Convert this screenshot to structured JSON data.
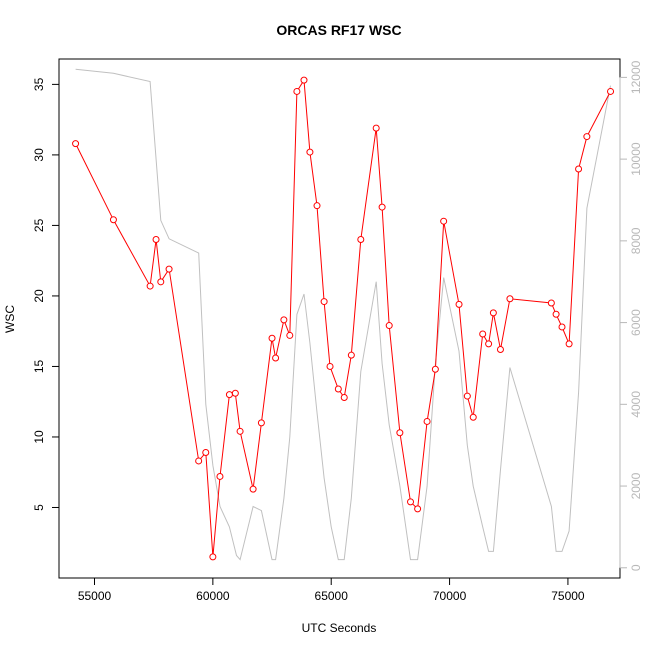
{
  "chart_data": {
    "type": "line",
    "title": "ORCAS RF17 WSC",
    "xlabel": "UTC Seconds",
    "ylabel": "WSC",
    "xlim": [
      53500,
      77200
    ],
    "ylim": [
      0,
      36.8
    ],
    "y2lim": [
      -250,
      12450
    ],
    "x_ticks": [
      "55000",
      "60000",
      "65000",
      "70000",
      "75000"
    ],
    "y_ticks": [
      "5",
      "10",
      "15",
      "20",
      "25",
      "30",
      "35"
    ],
    "y2_ticks": [
      "0",
      "2000",
      "4000",
      "6000",
      "8000",
      "10000",
      "12000"
    ],
    "grid": false,
    "series": [
      {
        "role": "wsc",
        "color": "#ff0000",
        "marker": "open-circle",
        "axis": "left",
        "x": [
          54200,
          55800,
          57350,
          57600,
          57800,
          58150,
          59400,
          59700,
          60000,
          60300,
          60700,
          60950,
          61150,
          61700,
          62050,
          62500,
          62650,
          63000,
          63250,
          63550,
          63850,
          64100,
          64400,
          64700,
          64950,
          65300,
          65550,
          65850,
          66250,
          66900,
          67150,
          67450,
          67900,
          68350,
          68650,
          69050,
          69400,
          69750,
          70400,
          70750,
          71000,
          71400,
          71650,
          71850,
          72150,
          72550,
          74300,
          74500,
          74750,
          75050,
          75450,
          75800,
          76800
        ],
        "y": [
          30.8,
          25.4,
          20.7,
          24.0,
          21.0,
          21.9,
          8.3,
          8.9,
          1.5,
          7.2,
          13.0,
          13.1,
          10.4,
          6.3,
          11.0,
          17.0,
          15.6,
          18.3,
          17.2,
          34.5,
          35.3,
          30.2,
          26.4,
          19.6,
          15.0,
          13.4,
          12.8,
          15.8,
          24.0,
          31.9,
          26.3,
          17.9,
          10.3,
          5.4,
          4.9,
          11.1,
          14.8,
          25.3,
          19.4,
          12.9,
          11.4,
          17.3,
          16.6,
          18.8,
          16.2,
          19.8,
          19.5,
          18.7,
          17.8,
          16.6,
          29.0,
          31.3,
          34.5
        ]
      },
      {
        "role": "altitude",
        "color": "#c0c0c0",
        "marker": "none",
        "axis": "right",
        "x": [
          54200,
          55800,
          57350,
          57800,
          58150,
          59400,
          59700,
          60000,
          60300,
          60700,
          61000,
          61150,
          61700,
          62050,
          62500,
          62650,
          63000,
          63250,
          63550,
          63850,
          64100,
          64400,
          64700,
          65000,
          65300,
          65550,
          65850,
          66250,
          66900,
          67150,
          67450,
          67900,
          68350,
          68650,
          69050,
          69400,
          69750,
          70400,
          70750,
          71000,
          71400,
          71650,
          71850,
          72150,
          72550,
          74300,
          74500,
          74750,
          75050,
          75450,
          75800,
          76800
        ],
        "y": [
          12200,
          12100,
          11900,
          8500,
          8050,
          7700,
          4000,
          2500,
          1500,
          1000,
          300,
          200,
          1500,
          1400,
          200,
          200,
          1700,
          3200,
          6200,
          6700,
          5500,
          3800,
          2200,
          1000,
          200,
          200,
          1700,
          4800,
          7000,
          5000,
          3500,
          2000,
          200,
          200,
          2000,
          5000,
          7100,
          5300,
          3000,
          2000,
          1000,
          400,
          400,
          2400,
          4900,
          1500,
          400,
          400,
          900,
          4300,
          8800,
          11800
        ]
      }
    ]
  }
}
